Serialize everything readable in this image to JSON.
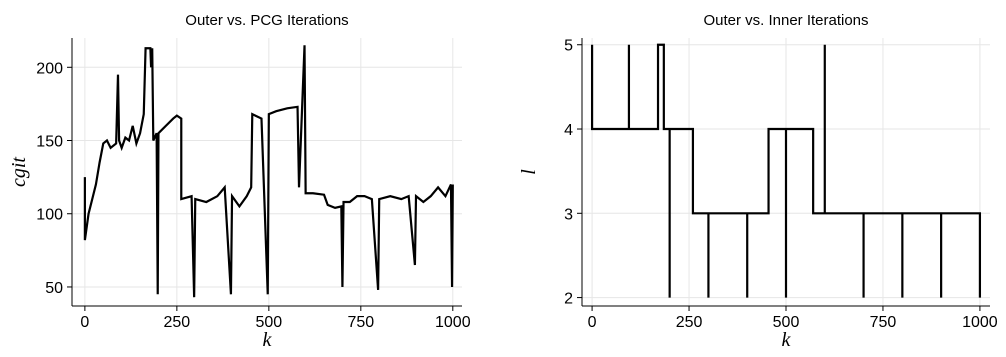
{
  "chart_data": [
    {
      "type": "line",
      "title": "Outer vs. PCG Iterations",
      "xlabel": "k",
      "ylabel": "cgit",
      "xlim": [
        -35,
        1025
      ],
      "ylim": [
        37,
        220
      ],
      "xticks": [
        0,
        250,
        500,
        750,
        1000
      ],
      "yticks": [
        50,
        100,
        150,
        200
      ],
      "grid": true,
      "series": [
        {
          "color": "#000000",
          "x": [
            0,
            0,
            10,
            20,
            30,
            40,
            50,
            60,
            70,
            85,
            90,
            93,
            100,
            110,
            120,
            130,
            140,
            150,
            160,
            165,
            178,
            180,
            183,
            186,
            195,
            198,
            200,
            220,
            240,
            250,
            262,
            262,
            290,
            297,
            300,
            330,
            360,
            380,
            397,
            400,
            420,
            440,
            452,
            455,
            480,
            497,
            500,
            520,
            550,
            578,
            582,
            597,
            600,
            620,
            650,
            660,
            680,
            697,
            700,
            703,
            720,
            740,
            760,
            780,
            797,
            800,
            830,
            860,
            880,
            897,
            900,
            920,
            940,
            960,
            980,
            995,
            998,
            1000
          ],
          "values": [
            125,
            82,
            100,
            110,
            120,
            135,
            148,
            150,
            145,
            148,
            195,
            150,
            145,
            152,
            150,
            160,
            148,
            155,
            168,
            213,
            213,
            200,
            213,
            150,
            155,
            45,
            155,
            160,
            165,
            167,
            165,
            110,
            112,
            43,
            110,
            108,
            112,
            118,
            45,
            112,
            105,
            112,
            118,
            168,
            165,
            45,
            168,
            170,
            172,
            173,
            118,
            215,
            114,
            114,
            113,
            106,
            104,
            105,
            50,
            108,
            108,
            112,
            112,
            110,
            48,
            110,
            112,
            110,
            112,
            65,
            112,
            108,
            112,
            118,
            112,
            120,
            50,
            120
          ]
        }
      ]
    },
    {
      "type": "line",
      "title": "Outer vs. Inner Iterations",
      "xlabel": "k",
      "ylabel": "l",
      "xlim": [
        -26,
        1026
      ],
      "ylim": [
        1.9,
        5.08
      ],
      "xticks": [
        0,
        250,
        500,
        750,
        1000
      ],
      "yticks": [
        2,
        3,
        4,
        5
      ],
      "grid": true,
      "series": [
        {
          "color": "#000000",
          "x": [
            0,
            0,
            95,
            95,
            95,
            170,
            170,
            185,
            185,
            200,
            200,
            200,
            260,
            260,
            300,
            300,
            300,
            400,
            400,
            400,
            455,
            455,
            500,
            500,
            500,
            570,
            570,
            600,
            600,
            600,
            700,
            700,
            700,
            800,
            800,
            800,
            900,
            900,
            900,
            1000,
            1000
          ],
          "values": [
            5,
            4,
            4,
            5,
            4,
            4,
            5,
            5,
            4,
            4,
            2,
            4,
            4,
            3,
            3,
            2,
            3,
            3,
            2,
            3,
            3,
            4,
            4,
            2,
            4,
            4,
            3,
            3,
            5,
            3,
            3,
            2,
            3,
            3,
            2,
            3,
            3,
            2,
            3,
            3,
            2
          ]
        }
      ]
    }
  ]
}
